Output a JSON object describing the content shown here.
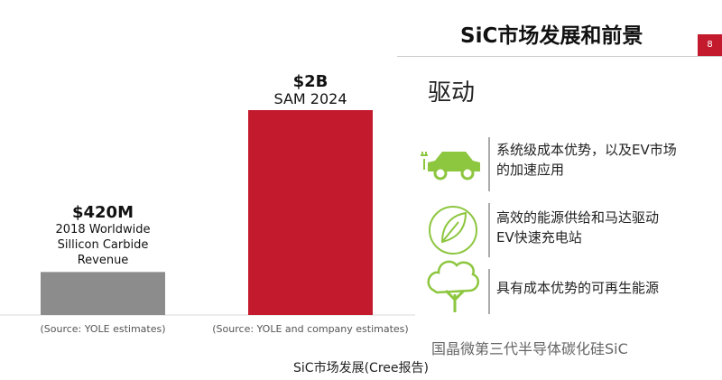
{
  "slide": {
    "title": "SiC市场发展和前景",
    "page_number": "8",
    "caption": "SiC市场发展(Cree报告)",
    "watermark": "国晶微第三代半导体碳化硅SiC"
  },
  "chart_data": {
    "type": "bar",
    "categories": [
      "2018 Worldwide Sillicon Carbide Revenue",
      "SAM 2024"
    ],
    "values": [
      420,
      2000
    ],
    "value_labels": [
      "$420M",
      "$2B"
    ],
    "colors": [
      "#8c8c8c",
      "#c41a2e"
    ],
    "sources": [
      "(Source: YOLE estimates)",
      "(Source: YOLE and company estimates)"
    ]
  },
  "drivers": {
    "heading": "驱动",
    "items": [
      {
        "lines": [
          "系统级成本优势，以及EV市场",
          "的加速应用"
        ]
      },
      {
        "lines": [
          "高效的能源供给和马达驱动",
          "EV快速充电站"
        ]
      },
      {
        "lines": [
          "具有成本优势的可再生能源"
        ]
      }
    ]
  }
}
